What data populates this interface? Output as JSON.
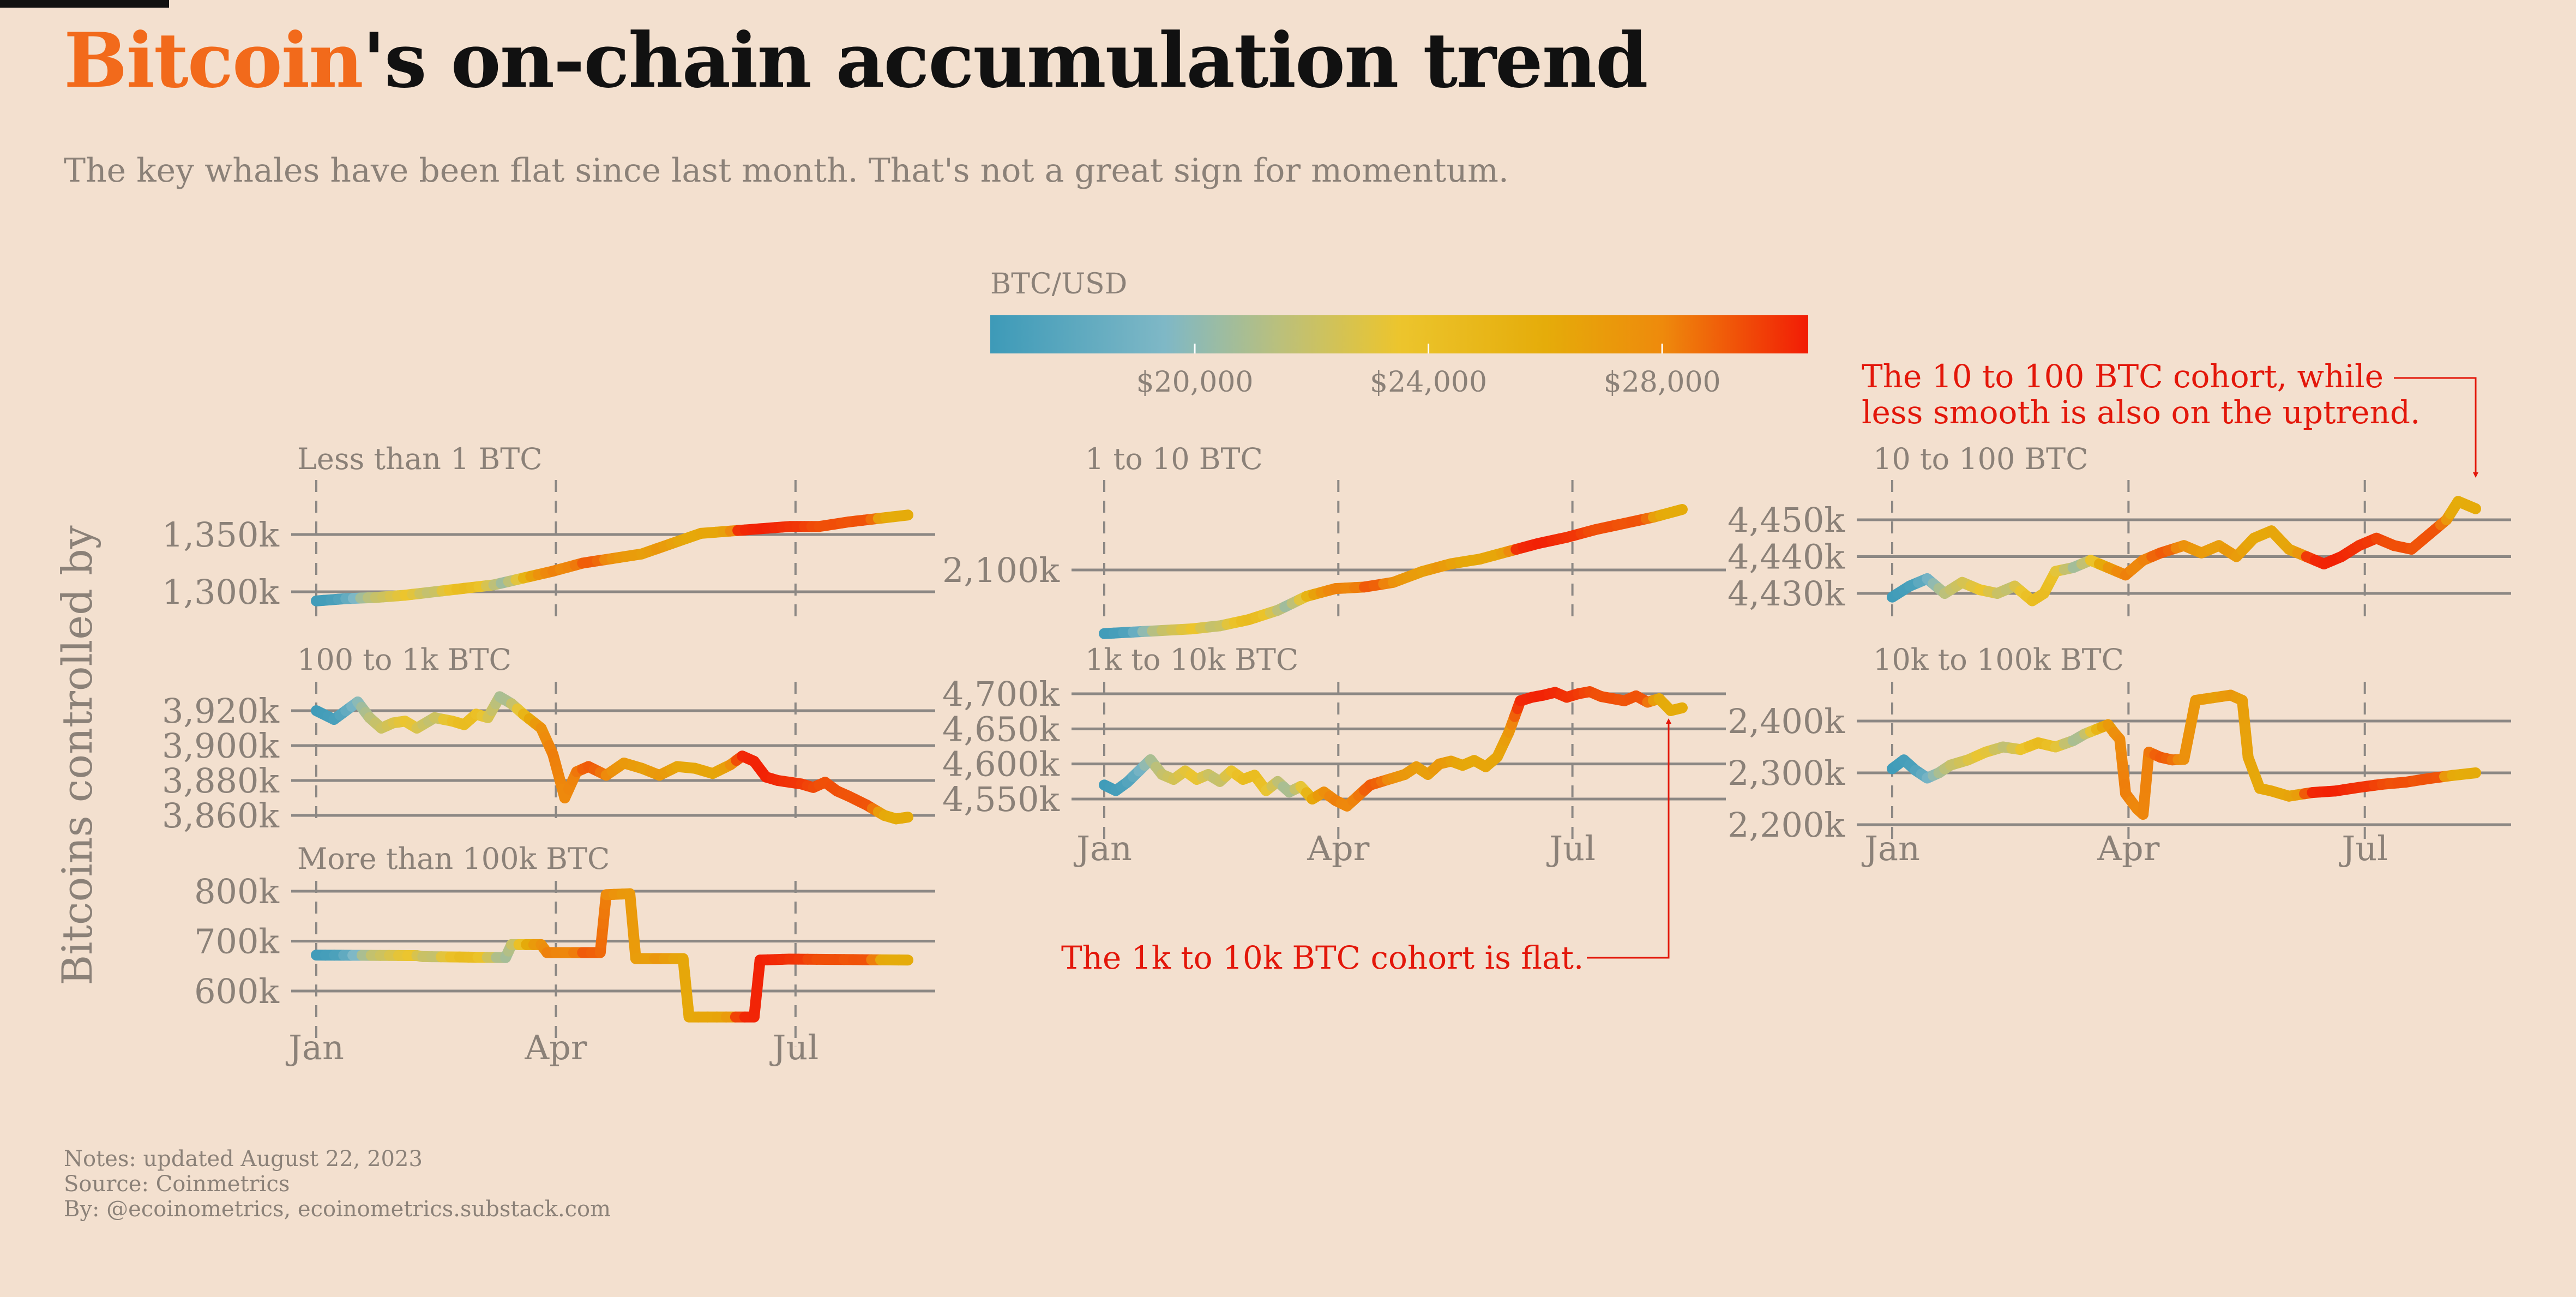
{
  "header": {
    "title_accent": "Bitcoin",
    "title_rest": "'s on-chain accumulation trend",
    "subtitle": "The key whales have been flat since last month. That's not a great sign for momentum.",
    "accent_color": "#f26a1b"
  },
  "footer": {
    "notes": "Notes: updated August 22, 2023",
    "source": "Source: Coinmetrics",
    "by": "By: @ecoinometrics, ecoinometrics.substack.com"
  },
  "chart_data": {
    "type": "line",
    "y_axis_label": "Bitcoins controlled by",
    "x_ticks": [
      "Jan",
      "Apr",
      "Jul"
    ],
    "colorbar": {
      "title": "BTC/USD",
      "range": [
        16500,
        30500
      ],
      "ticks": [
        20000,
        24000,
        28000
      ],
      "tick_labels": [
        "$20,000",
        "$24,000",
        "$28,000"
      ],
      "stops": [
        {
          "value": 16500,
          "color": "#3d9ab8"
        },
        {
          "value": 19500,
          "color": "#7fb8c6"
        },
        {
          "value": 21500,
          "color": "#bcc07a"
        },
        {
          "value": 23500,
          "color": "#ecc52d"
        },
        {
          "value": 26000,
          "color": "#e5ac0a"
        },
        {
          "value": 28000,
          "color": "#ee8a0c"
        },
        {
          "value": 30500,
          "color": "#f21c05"
        }
      ]
    },
    "price_path": [
      [
        0,
        16600
      ],
      [
        0.02,
        16800
      ],
      [
        0.04,
        17200
      ],
      [
        0.06,
        18500
      ],
      [
        0.08,
        20600
      ],
      [
        0.1,
        21800
      ],
      [
        0.12,
        22300
      ],
      [
        0.14,
        23000
      ],
      [
        0.16,
        23600
      ],
      [
        0.18,
        22300
      ],
      [
        0.2,
        21600
      ],
      [
        0.22,
        23200
      ],
      [
        0.24,
        24300
      ],
      [
        0.26,
        24500
      ],
      [
        0.28,
        23800
      ],
      [
        0.3,
        22000
      ],
      [
        0.32,
        20500
      ],
      [
        0.34,
        22400
      ],
      [
        0.36,
        26000
      ],
      [
        0.38,
        27500
      ],
      [
        0.4,
        28300
      ],
      [
        0.42,
        28000
      ],
      [
        0.44,
        28200
      ],
      [
        0.46,
        29200
      ],
      [
        0.48,
        28800
      ],
      [
        0.5,
        27700
      ],
      [
        0.52,
        27200
      ],
      [
        0.54,
        27000
      ],
      [
        0.56,
        26700
      ],
      [
        0.58,
        27300
      ],
      [
        0.6,
        26800
      ],
      [
        0.62,
        26300
      ],
      [
        0.64,
        26200
      ],
      [
        0.66,
        26400
      ],
      [
        0.68,
        26300
      ],
      [
        0.7,
        26900
      ],
      [
        0.72,
        30200
      ],
      [
        0.74,
        30300
      ],
      [
        0.76,
        30400
      ],
      [
        0.78,
        30200
      ],
      [
        0.8,
        30000
      ],
      [
        0.82,
        29900
      ],
      [
        0.84,
        29500
      ],
      [
        0.86,
        29300
      ],
      [
        0.88,
        29400
      ],
      [
        0.9,
        29200
      ],
      [
        0.92,
        29300
      ],
      [
        0.94,
        29200
      ],
      [
        0.96,
        26200
      ],
      [
        0.98,
        26000
      ],
      [
        1,
        26100
      ]
    ],
    "panels": [
      {
        "label": "Less than 1 BTC",
        "y_ticks": [
          1300,
          1350
        ],
        "y_tick_labels": [
          "1,300k",
          "1,350k"
        ],
        "ylim": [
          1293,
          1365
        ],
        "points": [
          [
            0,
            1292
          ],
          [
            0.05,
            1294
          ],
          [
            0.1,
            1295
          ],
          [
            0.15,
            1297
          ],
          [
            0.2,
            1300
          ],
          [
            0.25,
            1303
          ],
          [
            0.3,
            1306
          ],
          [
            0.35,
            1312
          ],
          [
            0.4,
            1318
          ],
          [
            0.45,
            1325
          ],
          [
            0.5,
            1329
          ],
          [
            0.55,
            1333
          ],
          [
            0.6,
            1342
          ],
          [
            0.65,
            1351
          ],
          [
            0.7,
            1353
          ],
          [
            0.75,
            1355
          ],
          [
            0.8,
            1357
          ],
          [
            0.85,
            1357
          ],
          [
            0.9,
            1361
          ],
          [
            0.95,
            1364
          ],
          [
            1,
            1367
          ]
        ]
      },
      {
        "label": "1 to 10 BTC",
        "y_ticks": [
          2100
        ],
        "y_tick_labels": [
          "2,100k"
        ],
        "ylim": [
          2061,
          2141
        ],
        "points": [
          [
            0,
            2059
          ],
          [
            0.05,
            2060
          ],
          [
            0.1,
            2061
          ],
          [
            0.15,
            2062
          ],
          [
            0.2,
            2064
          ],
          [
            0.25,
            2068
          ],
          [
            0.3,
            2074
          ],
          [
            0.35,
            2083
          ],
          [
            0.4,
            2088
          ],
          [
            0.45,
            2089
          ],
          [
            0.5,
            2092
          ],
          [
            0.55,
            2099
          ],
          [
            0.6,
            2104
          ],
          [
            0.65,
            2107
          ],
          [
            0.7,
            2112
          ],
          [
            0.75,
            2117
          ],
          [
            0.8,
            2121
          ],
          [
            0.85,
            2126
          ],
          [
            0.9,
            2130
          ],
          [
            0.95,
            2134
          ],
          [
            1,
            2139
          ]
        ]
      },
      {
        "label": "10 to 100 BTC",
        "y_ticks": [
          4430,
          4440,
          4450
        ],
        "y_tick_labels": [
          "4,430k",
          "4,440k",
          "4,450k"
        ],
        "ylim": [
          4427,
          4458
        ],
        "points": [
          [
            0,
            4429
          ],
          [
            0.03,
            4432
          ],
          [
            0.06,
            4434
          ],
          [
            0.09,
            4430
          ],
          [
            0.12,
            4433
          ],
          [
            0.15,
            4431
          ],
          [
            0.18,
            4430
          ],
          [
            0.21,
            4432
          ],
          [
            0.24,
            4428
          ],
          [
            0.26,
            4430
          ],
          [
            0.28,
            4436
          ],
          [
            0.31,
            4437
          ],
          [
            0.34,
            4439
          ],
          [
            0.37,
            4437
          ],
          [
            0.4,
            4435
          ],
          [
            0.43,
            4439
          ],
          [
            0.46,
            4441
          ],
          [
            0.5,
            4443
          ],
          [
            0.53,
            4441
          ],
          [
            0.56,
            4443
          ],
          [
            0.59,
            4440
          ],
          [
            0.62,
            4445
          ],
          [
            0.65,
            4447
          ],
          [
            0.68,
            4442
          ],
          [
            0.71,
            4440
          ],
          [
            0.74,
            4438
          ],
          [
            0.77,
            4440
          ],
          [
            0.8,
            4443
          ],
          [
            0.83,
            4445
          ],
          [
            0.86,
            4443
          ],
          [
            0.89,
            4442
          ],
          [
            0.92,
            4446
          ],
          [
            0.95,
            4450
          ],
          [
            0.97,
            4455
          ],
          [
            1,
            4453
          ]
        ]
      },
      {
        "label": "100 to 1k BTC",
        "y_ticks": [
          3860,
          3880,
          3900,
          3920
        ],
        "y_tick_labels": [
          "3,860k",
          "3,880k",
          "3,900k",
          "3,920k"
        ],
        "ylim": [
          3853,
          3933
        ],
        "points": [
          [
            0,
            3920
          ],
          [
            0.03,
            3915
          ],
          [
            0.05,
            3920
          ],
          [
            0.07,
            3925
          ],
          [
            0.09,
            3916
          ],
          [
            0.11,
            3910
          ],
          [
            0.13,
            3913
          ],
          [
            0.15,
            3914
          ],
          [
            0.17,
            3910
          ],
          [
            0.2,
            3916
          ],
          [
            0.23,
            3914
          ],
          [
            0.25,
            3912
          ],
          [
            0.27,
            3918
          ],
          [
            0.29,
            3916
          ],
          [
            0.31,
            3928
          ],
          [
            0.33,
            3924
          ],
          [
            0.35,
            3918
          ],
          [
            0.38,
            3910
          ],
          [
            0.4,
            3895
          ],
          [
            0.42,
            3870
          ],
          [
            0.44,
            3885
          ],
          [
            0.46,
            3888
          ],
          [
            0.49,
            3883
          ],
          [
            0.52,
            3890
          ],
          [
            0.55,
            3887
          ],
          [
            0.58,
            3883
          ],
          [
            0.61,
            3888
          ],
          [
            0.64,
            3887
          ],
          [
            0.67,
            3884
          ],
          [
            0.7,
            3889
          ],
          [
            0.72,
            3894
          ],
          [
            0.74,
            3891
          ],
          [
            0.76,
            3882
          ],
          [
            0.78,
            3880
          ],
          [
            0.8,
            3879
          ],
          [
            0.82,
            3878
          ],
          [
            0.84,
            3876
          ],
          [
            0.86,
            3879
          ],
          [
            0.88,
            3874
          ],
          [
            0.9,
            3871
          ],
          [
            0.93,
            3866
          ],
          [
            0.96,
            3860
          ],
          [
            0.98,
            3858
          ],
          [
            1,
            3859
          ]
        ]
      },
      {
        "label": "1k to 10k BTC",
        "y_ticks": [
          4550,
          4600,
          4650,
          4700
        ],
        "y_tick_labels": [
          "4,550k",
          "4,600k",
          "4,650k",
          "4,700k"
        ],
        "ylim": [
          4537,
          4717
        ],
        "points": [
          [
            0,
            4570
          ],
          [
            0.02,
            4562
          ],
          [
            0.04,
            4574
          ],
          [
            0.06,
            4590
          ],
          [
            0.08,
            4606
          ],
          [
            0.1,
            4585
          ],
          [
            0.12,
            4578
          ],
          [
            0.14,
            4590
          ],
          [
            0.16,
            4578
          ],
          [
            0.18,
            4585
          ],
          [
            0.2,
            4575
          ],
          [
            0.22,
            4590
          ],
          [
            0.24,
            4578
          ],
          [
            0.26,
            4584
          ],
          [
            0.28,
            4562
          ],
          [
            0.3,
            4575
          ],
          [
            0.32,
            4560
          ],
          [
            0.34,
            4568
          ],
          [
            0.36,
            4550
          ],
          [
            0.38,
            4560
          ],
          [
            0.4,
            4548
          ],
          [
            0.42,
            4540
          ],
          [
            0.44,
            4555
          ],
          [
            0.46,
            4570
          ],
          [
            0.48,
            4575
          ],
          [
            0.5,
            4580
          ],
          [
            0.52,
            4585
          ],
          [
            0.54,
            4596
          ],
          [
            0.56,
            4585
          ],
          [
            0.58,
            4600
          ],
          [
            0.6,
            4604
          ],
          [
            0.62,
            4598
          ],
          [
            0.64,
            4605
          ],
          [
            0.66,
            4596
          ],
          [
            0.68,
            4610
          ],
          [
            0.7,
            4645
          ],
          [
            0.72,
            4690
          ],
          [
            0.74,
            4695
          ],
          [
            0.76,
            4698
          ],
          [
            0.78,
            4702
          ],
          [
            0.8,
            4695
          ],
          [
            0.82,
            4700
          ],
          [
            0.84,
            4703
          ],
          [
            0.86,
            4696
          ],
          [
            0.88,
            4693
          ],
          [
            0.9,
            4690
          ],
          [
            0.92,
            4697
          ],
          [
            0.94,
            4688
          ],
          [
            0.96,
            4693
          ],
          [
            0.98,
            4676
          ],
          [
            1,
            4680
          ]
        ]
      },
      {
        "label": "10k to 100k BTC",
        "y_ticks": [
          2200,
          2300,
          2400
        ],
        "y_tick_labels": [
          "2,200k",
          "2,300k",
          "2,400k"
        ],
        "ylim": [
          2200,
          2459
        ],
        "points": [
          [
            0,
            2308
          ],
          [
            0.02,
            2325
          ],
          [
            0.04,
            2305
          ],
          [
            0.06,
            2290
          ],
          [
            0.08,
            2300
          ],
          [
            0.1,
            2315
          ],
          [
            0.13,
            2325
          ],
          [
            0.16,
            2340
          ],
          [
            0.19,
            2350
          ],
          [
            0.22,
            2345
          ],
          [
            0.25,
            2358
          ],
          [
            0.28,
            2350
          ],
          [
            0.31,
            2362
          ],
          [
            0.33,
            2375
          ],
          [
            0.35,
            2384
          ],
          [
            0.37,
            2393
          ],
          [
            0.38,
            2378
          ],
          [
            0.39,
            2365
          ],
          [
            0.4,
            2260
          ],
          [
            0.42,
            2230
          ],
          [
            0.43,
            2220
          ],
          [
            0.44,
            2340
          ],
          [
            0.46,
            2330
          ],
          [
            0.48,
            2325
          ],
          [
            0.5,
            2326
          ],
          [
            0.52,
            2440
          ],
          [
            0.55,
            2445
          ],
          [
            0.58,
            2450
          ],
          [
            0.6,
            2440
          ],
          [
            0.61,
            2330
          ],
          [
            0.63,
            2270
          ],
          [
            0.65,
            2265
          ],
          [
            0.68,
            2255
          ],
          [
            0.72,
            2262
          ],
          [
            0.76,
            2265
          ],
          [
            0.8,
            2272
          ],
          [
            0.84,
            2278
          ],
          [
            0.88,
            2282
          ],
          [
            0.92,
            2289
          ],
          [
            0.96,
            2295
          ],
          [
            1,
            2300
          ]
        ]
      },
      {
        "label": "More than 100k BTC",
        "y_ticks": [
          600,
          700,
          800
        ],
        "y_tick_labels": [
          "600k",
          "700k",
          "800k"
        ],
        "ylim": [
          546,
          828
        ],
        "points": [
          [
            0,
            672
          ],
          [
            0.17,
            671
          ],
          [
            0.18,
            669
          ],
          [
            0.32,
            667
          ],
          [
            0.33,
            693
          ],
          [
            0.38,
            693
          ],
          [
            0.39,
            677
          ],
          [
            0.48,
            677
          ],
          [
            0.49,
            793
          ],
          [
            0.53,
            795
          ],
          [
            0.54,
            665
          ],
          [
            0.62,
            665
          ],
          [
            0.63,
            548
          ],
          [
            0.74,
            548
          ],
          [
            0.75,
            662
          ],
          [
            0.8,
            664
          ],
          [
            1,
            662
          ]
        ]
      }
    ],
    "annotations": [
      {
        "text_line1": "The 10 to 100 BTC cohort, while",
        "text_line2": "less smooth is also on the uptrend.",
        "color": "#e3170a"
      },
      {
        "text_line1": "The 1k to 10k BTC cohort is flat.",
        "color": "#e3170a"
      }
    ]
  }
}
